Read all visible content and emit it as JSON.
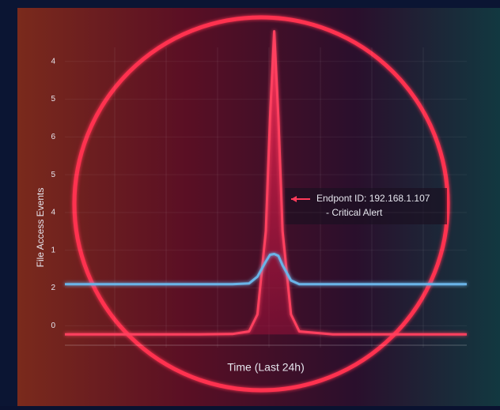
{
  "chart_data": {
    "type": "line",
    "y_label": "File Access Events",
    "x_label": "Time (Last 24h)",
    "annotation": [
      "Endpont ID: 192.168.1.107",
      "- Critical Alert"
    ],
    "x": [
      0,
      4,
      8,
      10,
      11,
      11.5,
      12,
      12.25,
      12.5,
      12.75,
      13,
      13.5,
      14,
      16,
      20,
      24
    ],
    "xlim": [
      0,
      24
    ],
    "ylim": [
      -0.6,
      8
    ],
    "yticks": [
      {
        "value": 0,
        "label": "0"
      },
      {
        "value": 1,
        "label": "2"
      },
      {
        "value": 2,
        "label": "1"
      },
      {
        "value": 3,
        "label": "4"
      },
      {
        "value": 4,
        "label": "5"
      },
      {
        "value": 5,
        "label": "6"
      },
      {
        "value": 6,
        "label": "5"
      },
      {
        "value": 7,
        "label": "4"
      }
    ],
    "series": [
      {
        "color": "#ff3f5e",
        "values": [
          -0.23,
          -0.23,
          -0.23,
          -0.22,
          -0.15,
          0.3,
          2.5,
          5.5,
          7.8,
          5.5,
          2.5,
          0.3,
          -0.15,
          -0.23,
          -0.23,
          -0.23
        ]
      },
      {
        "color": "#6ab4e8",
        "values": [
          1.1,
          1.1,
          1.1,
          1.1,
          1.12,
          1.3,
          1.7,
          1.88,
          1.9,
          1.85,
          1.6,
          1.2,
          1.1,
          1.1,
          1.1,
          1.1
        ]
      }
    ]
  }
}
